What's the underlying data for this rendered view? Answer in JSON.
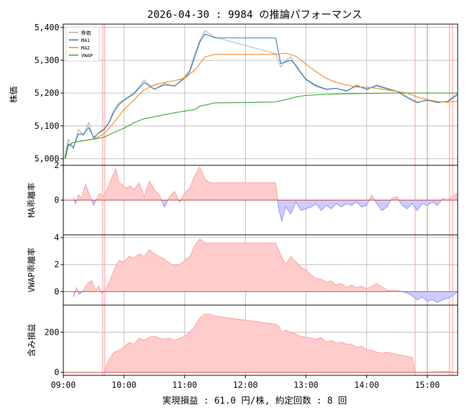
{
  "chart_data": {
    "type": "line",
    "title": "2026-04-30 : 9984 の推論パフォーマンス",
    "footer": "実現損益 : 61.0 円/株, 約定回数 : 8 回",
    "x_ticks": [
      "09:00",
      "10:00",
      "11:00",
      "12:00",
      "13:00",
      "14:00",
      "15:00"
    ],
    "x_range": [
      "09:00",
      "15:30"
    ],
    "grid": true,
    "trade_marks": [
      "09:39",
      "09:41",
      "14:48",
      "15:00",
      "15:22",
      "15:25"
    ],
    "panels": [
      {
        "id": "price",
        "ylabel": "株価",
        "ylim": [
          4980,
          5410
        ],
        "y_ticks": [
          "5,000",
          "5,100",
          "5,200",
          "5,300",
          "5,400"
        ],
        "y_tick_values": [
          5000,
          5100,
          5200,
          5300,
          5400
        ],
        "legend": {
          "position": "top-left",
          "entries": [
            "株価",
            "MA1",
            "MA2",
            "VWAP"
          ]
        },
        "series": [
          {
            "name": "株価",
            "color": "#aaaaaa",
            "x": [
              "09:01",
              "09:05",
              "09:10",
              "09:15",
              "09:20",
              "09:25",
              "09:30",
              "09:35",
              "09:40",
              "09:45",
              "09:50",
              "09:55",
              "10:00",
              "10:10",
              "10:20",
              "10:30",
              "10:40",
              "10:50",
              "11:00",
              "11:05",
              "11:10",
              "11:15",
              "11:20",
              "11:30",
              "12:30",
              "12:35",
              "12:40",
              "12:45",
              "12:50",
              "12:55",
              "13:00",
              "13:10",
              "13:20",
              "13:30",
              "13:40",
              "13:50",
              "14:00",
              "14:10",
              "14:20",
              "14:30",
              "14:40",
              "14:50",
              "15:00",
              "15:10",
              "15:20",
              "15:30"
            ],
            "y": [
              5000,
              5060,
              5030,
              5090,
              5070,
              5110,
              5060,
              5080,
              5090,
              5110,
              5150,
              5170,
              5180,
              5200,
              5240,
              5210,
              5230,
              5220,
              5250,
              5270,
              5320,
              5360,
              5390,
              5370,
              5320,
              5280,
              5300,
              5310,
              5280,
              5260,
              5240,
              5220,
              5210,
              5215,
              5205,
              5225,
              5210,
              5225,
              5215,
              5205,
              5185,
              5170,
              5180,
              5170,
              5175,
              5200
            ]
          },
          {
            "name": "MA1",
            "color": "#1f77b4",
            "x": [
              "09:02",
              "09:05",
              "09:10",
              "09:15",
              "09:20",
              "09:25",
              "09:30",
              "09:35",
              "09:40",
              "09:45",
              "09:50",
              "09:55",
              "10:00",
              "10:10",
              "10:20",
              "10:30",
              "10:40",
              "10:50",
              "11:00",
              "11:05",
              "11:10",
              "11:15",
              "11:20",
              "11:30",
              "12:30",
              "12:35",
              "12:40",
              "12:45",
              "12:50",
              "12:55",
              "13:00",
              "13:10",
              "13:20",
              "13:30",
              "13:40",
              "13:50",
              "14:00",
              "14:10",
              "14:20",
              "14:30",
              "14:40",
              "14:50",
              "15:00",
              "15:10",
              "15:20",
              "15:30"
            ],
            "y": [
              5005,
              5045,
              5035,
              5075,
              5075,
              5095,
              5065,
              5078,
              5088,
              5108,
              5142,
              5165,
              5178,
              5198,
              5232,
              5212,
              5225,
              5222,
              5245,
              5265,
              5310,
              5355,
              5380,
              5368,
              5368,
              5290,
              5295,
              5300,
              5285,
              5262,
              5242,
              5223,
              5212,
              5214,
              5207,
              5222,
              5212,
              5222,
              5213,
              5205,
              5188,
              5172,
              5178,
              5172,
              5174,
              5195
            ]
          },
          {
            "name": "MA2",
            "color": "#ff7f0e",
            "x": [
              "09:02",
              "09:05",
              "09:10",
              "09:20",
              "09:30",
              "09:40",
              "09:50",
              "10:00",
              "10:10",
              "10:20",
              "10:30",
              "10:40",
              "10:50",
              "11:00",
              "11:10",
              "11:20",
              "11:30",
              "12:30",
              "12:40",
              "12:50",
              "13:00",
              "13:10",
              "13:20",
              "13:30",
              "13:40",
              "13:50",
              "14:00",
              "14:20",
              "14:40",
              "14:50",
              "15:00",
              "15:10",
              "15:20",
              "15:30"
            ],
            "y": [
              5000,
              5040,
              5050,
              5055,
              5060,
              5075,
              5110,
              5150,
              5180,
              5210,
              5225,
              5232,
              5238,
              5245,
              5270,
              5310,
              5318,
              5318,
              5322,
              5312,
              5288,
              5265,
              5245,
              5232,
              5225,
              5218,
              5218,
              5210,
              5200,
              5188,
              5180,
              5174,
              5172,
              5175
            ]
          },
          {
            "name": "VWAP",
            "color": "#2ca02c",
            "x": [
              "09:02",
              "09:05",
              "09:10",
              "09:20",
              "09:30",
              "09:40",
              "09:50",
              "10:00",
              "10:10",
              "10:20",
              "10:30",
              "10:40",
              "10:50",
              "11:00",
              "11:10",
              "11:15",
              "11:30",
              "12:30",
              "12:40",
              "12:50",
              "13:00",
              "13:20",
              "13:40",
              "14:00",
              "14:30",
              "15:00",
              "15:30"
            ],
            "y": [
              5000,
              5040,
              5050,
              5055,
              5060,
              5065,
              5080,
              5093,
              5110,
              5122,
              5128,
              5134,
              5140,
              5145,
              5150,
              5160,
              5170,
              5173,
              5180,
              5188,
              5193,
              5196,
              5198,
              5199,
              5200,
              5200,
              5200
            ]
          }
        ]
      },
      {
        "id": "ma_dev",
        "ylabel": "MA乖離率",
        "ylim": [
          -2,
          2
        ],
        "y_ticks": [
          "2",
          "0"
        ],
        "y_tick_values": [
          2,
          0
        ],
        "series": [
          {
            "name": "",
            "pos_color": "#ff9999",
            "neg_color": "#8888ff",
            "x": [
              "09:10",
              "09:12",
              "09:15",
              "09:18",
              "09:22",
              "09:26",
              "09:30",
              "09:33",
              "09:36",
              "09:40",
              "09:44",
              "09:48",
              "09:52",
              "09:55",
              "09:58",
              "10:02",
              "10:06",
              "10:10",
              "10:15",
              "10:20",
              "10:25",
              "10:30",
              "10:35",
              "10:40",
              "10:45",
              "10:50",
              "10:55",
              "11:00",
              "11:05",
              "11:10",
              "11:15",
              "11:20",
              "11:25",
              "11:30",
              "12:30",
              "12:33",
              "12:36",
              "12:40",
              "12:45",
              "12:50",
              "12:55",
              "13:00",
              "13:05",
              "13:10",
              "13:15",
              "13:20",
              "13:25",
              "13:30",
              "13:35",
              "13:40",
              "13:45",
              "13:50",
              "13:55",
              "14:00",
              "14:05",
              "14:10",
              "14:15",
              "14:20",
              "14:25",
              "14:30",
              "14:35",
              "14:40",
              "14:45",
              "14:50",
              "14:55",
              "15:00",
              "15:05",
              "15:10",
              "15:15",
              "15:20",
              "15:25",
              "15:30"
            ],
            "y": [
              0.2,
              -0.2,
              0.3,
              0.1,
              0.9,
              0.3,
              -0.3,
              0.1,
              0.4,
              0.2,
              0.7,
              1.3,
              1.8,
              1.0,
              0.9,
              0.7,
              0.8,
              0.6,
              1.0,
              0.2,
              1.1,
              0.6,
              0.3,
              -0.4,
              0.2,
              0.5,
              -0.1,
              0.4,
              0.7,
              1.4,
              1.9,
              1.2,
              1.0,
              1.0,
              1.0,
              -0.5,
              -1.2,
              -0.4,
              -0.8,
              -0.1,
              -0.6,
              -0.5,
              -0.4,
              -0.2,
              -0.6,
              -0.3,
              -0.5,
              -0.2,
              -0.4,
              -0.2,
              -0.3,
              -0.1,
              -0.4,
              -0.3,
              0.3,
              -0.2,
              -0.6,
              -0.4,
              0.1,
              0.2,
              -0.3,
              -0.5,
              -0.2,
              -0.6,
              -0.2,
              -0.3,
              -0.1,
              -0.3,
              0.1,
              0.0,
              0.2,
              0.4
            ]
          }
        ]
      },
      {
        "id": "vwap_dev",
        "ylabel": "VWAP乖離率",
        "ylim": [
          -1,
          4.2
        ],
        "y_ticks": [
          "4",
          "2",
          "0"
        ],
        "y_tick_values": [
          4,
          2,
          0
        ],
        "series": [
          {
            "name": "",
            "pos_color": "#ff9999",
            "neg_color": "#8888ff",
            "x": [
              "09:10",
              "09:13",
              "09:16",
              "09:20",
              "09:24",
              "09:28",
              "09:32",
              "09:35",
              "09:38",
              "09:42",
              "09:46",
              "09:50",
              "09:55",
              "10:00",
              "10:05",
              "10:10",
              "10:15",
              "10:20",
              "10:25",
              "10:30",
              "10:35",
              "10:40",
              "10:45",
              "10:50",
              "10:55",
              "11:00",
              "11:05",
              "11:10",
              "11:15",
              "11:20",
              "11:25",
              "11:30",
              "12:30",
              "12:35",
              "12:40",
              "12:45",
              "12:50",
              "12:55",
              "13:00",
              "13:05",
              "13:10",
              "13:15",
              "13:20",
              "13:25",
              "13:30",
              "13:35",
              "13:40",
              "13:45",
              "13:50",
              "13:55",
              "14:00",
              "14:10",
              "14:20",
              "14:30",
              "14:40",
              "14:45",
              "14:50",
              "14:55",
              "15:00",
              "15:05",
              "15:10",
              "15:15",
              "15:20",
              "15:25",
              "15:30"
            ],
            "y": [
              -0.4,
              0.3,
              -0.2,
              0.1,
              0.6,
              0.8,
              0.1,
              0.4,
              -0.1,
              0.2,
              0.8,
              1.6,
              2.3,
              2.2,
              2.6,
              2.5,
              2.8,
              2.6,
              3.1,
              2.8,
              2.6,
              2.4,
              2.1,
              1.9,
              2.0,
              2.3,
              2.6,
              3.4,
              3.9,
              3.6,
              3.6,
              3.6,
              3.6,
              2.7,
              2.0,
              2.6,
              2.2,
              1.8,
              1.6,
              1.2,
              1.0,
              0.9,
              0.7,
              0.8,
              0.5,
              0.6,
              0.3,
              0.5,
              0.3,
              0.4,
              0.2,
              0.6,
              0.1,
              0.1,
              -0.1,
              -0.3,
              -0.6,
              -0.4,
              -0.7,
              -0.6,
              -0.8,
              -0.6,
              -0.5,
              -0.3,
              0.0
            ]
          }
        ]
      },
      {
        "id": "pnl",
        "ylabel": "含み損益",
        "ylim": [
          -15,
          335
        ],
        "y_ticks": [
          "200",
          "0"
        ],
        "y_tick_values": [
          200,
          0
        ],
        "series": [
          {
            "name": "",
            "pos_color": "#ff9999",
            "neg_color": "#8888ff",
            "x": [
              "09:41",
              "09:43",
              "09:46",
              "09:50",
              "09:55",
              "10:00",
              "10:05",
              "10:10",
              "10:15",
              "10:20",
              "10:25",
              "10:30",
              "10:35",
              "10:40",
              "10:45",
              "10:50",
              "10:55",
              "11:00",
              "11:05",
              "11:10",
              "11:15",
              "11:20",
              "11:25",
              "11:30",
              "12:30",
              "12:33",
              "12:36",
              "12:40",
              "12:45",
              "12:50",
              "12:55",
              "13:00",
              "13:05",
              "13:10",
              "13:15",
              "13:20",
              "13:25",
              "13:30",
              "13:35",
              "13:40",
              "13:45",
              "13:50",
              "13:55",
              "14:00",
              "14:05",
              "14:10",
              "14:15",
              "14:20",
              "14:25",
              "14:30",
              "14:35",
              "14:40",
              "14:45",
              "14:48",
              "15:22",
              "15:25"
            ],
            "y": [
              0,
              40,
              70,
              100,
              110,
              125,
              150,
              140,
              170,
              160,
              175,
              180,
              170,
              165,
              170,
              160,
              170,
              180,
              200,
              230,
              270,
              290,
              290,
              280,
              240,
              230,
              200,
              210,
              200,
              190,
              180,
              175,
              170,
              165,
              175,
              150,
              160,
              145,
              150,
              140,
              140,
              125,
              130,
              110,
              110,
              100,
              95,
              100,
              95,
              90,
              85,
              80,
              75,
              0,
              5,
              0
            ]
          }
        ]
      }
    ]
  }
}
